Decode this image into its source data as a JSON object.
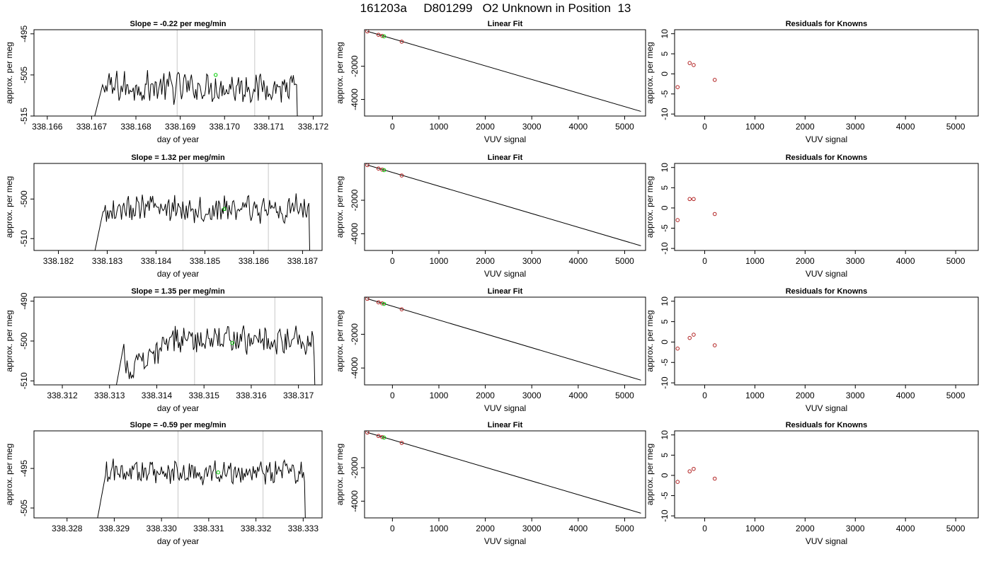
{
  "header": {
    "title": "161203a     D801299   O2 Unknown in Position  13"
  },
  "chart_data": [
    {
      "type": "line",
      "title": "Slope =  -0.22  per meg/min",
      "xlabel": "day of year",
      "ylabel": "approx. per meg",
      "xlim": [
        338.1657,
        338.1722
      ],
      "ylim": [
        -515,
        -494
      ],
      "xticks": [
        "338.166",
        "338.167",
        "338.168",
        "338.169",
        "338.170",
        "338.171",
        "338.172"
      ],
      "xtick_values": [
        338.166,
        338.167,
        338.168,
        338.169,
        338.17,
        338.171,
        338.172
      ],
      "yticks": [
        "-495",
        "-505",
        "-515"
      ],
      "ytick_values": [
        -495,
        -505,
        -515
      ],
      "vlines": [
        338.16893,
        338.17068
      ],
      "series_start": 338.167,
      "series_end": 338.1717,
      "baseline": -508,
      "noise": 3.2,
      "green_point": {
        "x": 338.1698,
        "y": -505
      }
    },
    {
      "type": "scatter",
      "title": "Linear Fit",
      "xlabel": "VUV signal",
      "ylabel": "approx. per meg",
      "xlim": [
        -600,
        5450
      ],
      "ylim": [
        -5000,
        200
      ],
      "xticks": [
        "0",
        "1000",
        "2000",
        "3000",
        "4000",
        "5000"
      ],
      "xtick_values": [
        0,
        1000,
        2000,
        3000,
        4000,
        5000
      ],
      "yticks": [
        "-2000",
        "-4000"
      ],
      "ytick_values": [
        -2000,
        -4000
      ],
      "fit_line": {
        "x": [
          -540,
          5350
        ],
        "y": [
          105,
          -4720
        ]
      },
      "points": [
        {
          "x": -540,
          "y": 100,
          "color": "#b22222"
        },
        {
          "x": -300,
          "y": -105,
          "color": "#b22222"
        },
        {
          "x": -220,
          "y": -170,
          "color": "#b22222"
        },
        {
          "x": -180,
          "y": -200,
          "color": "#00cc00"
        },
        {
          "x": 200,
          "y": -520,
          "color": "#b22222"
        }
      ]
    },
    {
      "type": "scatter",
      "title": "Residuals for Knowns",
      "xlabel": "VUV signal",
      "ylabel": "approx. per meg",
      "xlim": [
        -600,
        5450
      ],
      "ylim": [
        -10.5,
        11
      ],
      "xticks": [
        "0",
        "1000",
        "2000",
        "3000",
        "4000",
        "5000"
      ],
      "xtick_values": [
        0,
        1000,
        2000,
        3000,
        4000,
        5000
      ],
      "yticks": [
        "-10",
        "-5",
        "0",
        "5",
        "10"
      ],
      "ytick_values": [
        -10,
        -5,
        0,
        5,
        10
      ],
      "points": [
        {
          "x": -540,
          "y": -3.3,
          "color": "#b22222"
        },
        {
          "x": -300,
          "y": 2.7,
          "color": "#b22222"
        },
        {
          "x": -220,
          "y": 2.2,
          "color": "#b22222"
        },
        {
          "x": 200,
          "y": -1.5,
          "color": "#b22222"
        }
      ]
    },
    {
      "type": "line",
      "title": "Slope =  1.32  per meg/min",
      "xlabel": "day of year",
      "ylabel": "approx. per meg",
      "xlim": [
        338.1815,
        338.1874
      ],
      "ylim": [
        -513,
        -491
      ],
      "xticks": [
        "338.182",
        "338.183",
        "338.184",
        "338.185",
        "338.186",
        "338.187"
      ],
      "xtick_values": [
        338.182,
        338.183,
        338.184,
        338.185,
        338.186,
        338.187
      ],
      "yticks": [
        "-500",
        "-510"
      ],
      "ytick_values": [
        -500,
        -510
      ],
      "vlines": [
        338.18455,
        338.1863
      ],
      "series_start": 338.1827,
      "series_end": 338.1872,
      "baseline": -502.5,
      "noise": 3.0,
      "green_point": {
        "x": 338.1854,
        "y": -502.5
      }
    },
    {
      "type": "scatter",
      "title": "Linear Fit",
      "xlabel": "VUV signal",
      "ylabel": "approx. per meg",
      "xlim": [
        -600,
        5450
      ],
      "ylim": [
        -5000,
        200
      ],
      "xticks": [
        "0",
        "1000",
        "2000",
        "3000",
        "4000",
        "5000"
      ],
      "xtick_values": [
        0,
        1000,
        2000,
        3000,
        4000,
        5000
      ],
      "yticks": [
        "-2000",
        "-4000"
      ],
      "ytick_values": [
        -2000,
        -4000
      ],
      "fit_line": {
        "x": [
          -540,
          5350
        ],
        "y": [
          105,
          -4720
        ]
      },
      "points": [
        {
          "x": -540,
          "y": 100,
          "color": "#b22222"
        },
        {
          "x": -300,
          "y": -105,
          "color": "#b22222"
        },
        {
          "x": -220,
          "y": -170,
          "color": "#b22222"
        },
        {
          "x": -180,
          "y": -200,
          "color": "#00cc00"
        },
        {
          "x": 200,
          "y": -520,
          "color": "#b22222"
        }
      ]
    },
    {
      "type": "scatter",
      "title": "Residuals for Knowns",
      "xlabel": "VUV signal",
      "ylabel": "approx. per meg",
      "xlim": [
        -600,
        5450
      ],
      "ylim": [
        -10.5,
        11
      ],
      "xticks": [
        "0",
        "1000",
        "2000",
        "3000",
        "4000",
        "5000"
      ],
      "xtick_values": [
        0,
        1000,
        2000,
        3000,
        4000,
        5000
      ],
      "yticks": [
        "-10",
        "-5",
        "0",
        "5",
        "10"
      ],
      "ytick_values": [
        -10,
        -5,
        0,
        5,
        10
      ],
      "points": [
        {
          "x": -540,
          "y": -3.0,
          "color": "#b22222"
        },
        {
          "x": -300,
          "y": 2.2,
          "color": "#b22222"
        },
        {
          "x": -220,
          "y": 2.2,
          "color": "#b22222"
        },
        {
          "x": 200,
          "y": -1.5,
          "color": "#b22222"
        }
      ]
    },
    {
      "type": "line",
      "title": "Slope =  1.35  per meg/min",
      "xlabel": "day of year",
      "ylabel": "approx. per meg",
      "xlim": [
        338.3114,
        338.3175
      ],
      "ylim": [
        -511,
        -489
      ],
      "xticks": [
        "338.312",
        "338.313",
        "338.314",
        "338.315",
        "338.316",
        "338.317"
      ],
      "xtick_values": [
        338.312,
        338.313,
        338.314,
        338.315,
        338.316,
        338.317
      ],
      "yticks": [
        "-490",
        "-500",
        "-510"
      ],
      "ytick_values": [
        -490,
        -500,
        -510
      ],
      "vlines": [
        338.3148,
        338.3165
      ],
      "series_start": 338.3131,
      "series_end": 338.3174,
      "baseline": -500,
      "noise": 3.0,
      "ramp": true,
      "green_point": {
        "x": 338.3156,
        "y": -500.5
      }
    },
    {
      "type": "scatter",
      "title": "Linear Fit",
      "xlabel": "VUV signal",
      "ylabel": "approx. per meg",
      "xlim": [
        -600,
        5450
      ],
      "ylim": [
        -5000,
        200
      ],
      "xticks": [
        "0",
        "1000",
        "2000",
        "3000",
        "4000",
        "5000"
      ],
      "xtick_values": [
        0,
        1000,
        2000,
        3000,
        4000,
        5000
      ],
      "yticks": [
        "-2000",
        "-4000"
      ],
      "ytick_values": [
        -2000,
        -4000
      ],
      "fit_line": {
        "x": [
          -540,
          5350
        ],
        "y": [
          105,
          -4720
        ]
      },
      "points": [
        {
          "x": -540,
          "y": 100,
          "color": "#b22222"
        },
        {
          "x": -300,
          "y": -105,
          "color": "#b22222"
        },
        {
          "x": -220,
          "y": -170,
          "color": "#b22222"
        },
        {
          "x": -180,
          "y": -200,
          "color": "#00cc00"
        },
        {
          "x": 200,
          "y": -520,
          "color": "#b22222"
        }
      ]
    },
    {
      "type": "scatter",
      "title": "Residuals for Knowns",
      "xlabel": "VUV signal",
      "ylabel": "approx. per meg",
      "xlim": [
        -600,
        5450
      ],
      "ylim": [
        -10.5,
        11
      ],
      "xticks": [
        "0",
        "1000",
        "2000",
        "3000",
        "4000",
        "5000"
      ],
      "xtick_values": [
        0,
        1000,
        2000,
        3000,
        4000,
        5000
      ],
      "yticks": [
        "-10",
        "-5",
        "0",
        "5",
        "10"
      ],
      "ytick_values": [
        -10,
        -5,
        0,
        5,
        10
      ],
      "points": [
        {
          "x": -540,
          "y": -1.6,
          "color": "#b22222"
        },
        {
          "x": -300,
          "y": 1.0,
          "color": "#b22222"
        },
        {
          "x": -220,
          "y": 1.8,
          "color": "#b22222"
        },
        {
          "x": 200,
          "y": -0.8,
          "color": "#b22222"
        }
      ]
    },
    {
      "type": "line",
      "title": "Slope =  -0.59  per meg/min",
      "xlabel": "day of year",
      "ylabel": "approx. per meg",
      "xlim": [
        338.3273,
        338.3334
      ],
      "ylim": [
        -507.5,
        -485.5
      ],
      "xticks": [
        "338.328",
        "338.329",
        "338.330",
        "338.331",
        "338.332",
        "338.333"
      ],
      "xtick_values": [
        338.328,
        338.329,
        338.33,
        338.331,
        338.332,
        338.333
      ],
      "yticks": [
        "-495",
        "-505"
      ],
      "ytick_values": [
        -495,
        -505
      ],
      "vlines": [
        338.33035,
        338.33215
      ],
      "series_start": 338.3286,
      "series_end": 338.3331,
      "baseline": -496,
      "noise": 2.6,
      "green_point": {
        "x": 338.3312,
        "y": -496
      }
    },
    {
      "type": "scatter",
      "title": "Linear Fit",
      "xlabel": "VUV signal",
      "ylabel": "approx. per meg",
      "xlim": [
        -600,
        5450
      ],
      "ylim": [
        -5000,
        200
      ],
      "xticks": [
        "0",
        "1000",
        "2000",
        "3000",
        "4000",
        "5000"
      ],
      "xtick_values": [
        0,
        1000,
        2000,
        3000,
        4000,
        5000
      ],
      "yticks": [
        "-2000",
        "-4000"
      ],
      "ytick_values": [
        -2000,
        -4000
      ],
      "fit_line": {
        "x": [
          -540,
          5350
        ],
        "y": [
          105,
          -4720
        ]
      },
      "points": [
        {
          "x": -540,
          "y": 100,
          "color": "#b22222"
        },
        {
          "x": -300,
          "y": -105,
          "color": "#b22222"
        },
        {
          "x": -220,
          "y": -170,
          "color": "#b22222"
        },
        {
          "x": -180,
          "y": -200,
          "color": "#00cc00"
        },
        {
          "x": 200,
          "y": -520,
          "color": "#b22222"
        }
      ]
    },
    {
      "type": "scatter",
      "title": "Residuals for Knowns",
      "xlabel": "VUV signal",
      "ylabel": "approx. per meg",
      "xlim": [
        -600,
        5450
      ],
      "ylim": [
        -10.5,
        11
      ],
      "xticks": [
        "0",
        "1000",
        "2000",
        "3000",
        "4000",
        "5000"
      ],
      "xtick_values": [
        0,
        1000,
        2000,
        3000,
        4000,
        5000
      ],
      "yticks": [
        "-10",
        "-5",
        "0",
        "5",
        "10"
      ],
      "ytick_values": [
        -10,
        -5,
        0,
        5,
        10
      ],
      "points": [
        {
          "x": -540,
          "y": -1.6,
          "color": "#b22222"
        },
        {
          "x": -300,
          "y": 1.0,
          "color": "#b22222"
        },
        {
          "x": -220,
          "y": 1.6,
          "color": "#b22222"
        },
        {
          "x": 200,
          "y": -0.8,
          "color": "#b22222"
        }
      ]
    }
  ]
}
